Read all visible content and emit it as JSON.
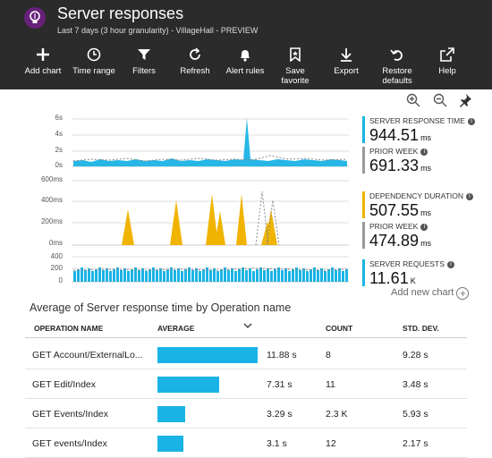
{
  "header": {
    "title": "Server responses",
    "subtitle": "Last 7 days (3 hour granularity) - VillageHall - PREVIEW"
  },
  "toolbar": {
    "items": [
      {
        "label": "Add chart",
        "icon": "plus-icon"
      },
      {
        "label": "Time range",
        "icon": "clock-icon"
      },
      {
        "label": "Filters",
        "icon": "filter-icon"
      },
      {
        "label": "Refresh",
        "icon": "refresh-icon"
      },
      {
        "label": "Alert rules",
        "icon": "bell-icon"
      },
      {
        "label": "Save favorite",
        "line1": "Save",
        "line2": "favorite",
        "icon": "bookmark-icon"
      },
      {
        "label": "Export",
        "icon": "download-icon"
      },
      {
        "label": "Restore defaults",
        "line1": "Restore",
        "line2": "defaults",
        "icon": "undo-icon"
      },
      {
        "label": "Help",
        "icon": "external-link-icon"
      }
    ]
  },
  "charts": {
    "response": {
      "ticks": [
        "6s",
        "4s",
        "2s",
        "0s"
      ],
      "legend": [
        {
          "name": "SERVER RESPONSE TIME",
          "value": "944.51",
          "unit": "ms",
          "color": "#1ab3e6"
        },
        {
          "name": "PRIOR WEEK",
          "value": "691.33",
          "unit": "ms",
          "color": "#999999"
        }
      ]
    },
    "dependency": {
      "ticks": [
        "600ms",
        "400ms",
        "200ms",
        "0ms"
      ],
      "legend": [
        {
          "name": "DEPENDENCY DURATION",
          "value": "507.55",
          "unit": "ms",
          "color": "#f0b400"
        },
        {
          "name": "PRIOR WEEK",
          "value": "474.89",
          "unit": "ms",
          "color": "#999999"
        }
      ]
    },
    "requests": {
      "ticks": [
        "400",
        "200",
        "0"
      ],
      "legend": [
        {
          "name": "SERVER REQUESTS",
          "value": "11.61",
          "unit": "K",
          "color": "#1ab3e6"
        }
      ]
    }
  },
  "add_chart_label": "Add new chart",
  "table": {
    "title": "Average of Server response time by Operation name",
    "headers": {
      "operation": "OPERATION NAME",
      "average": "AVERAGE",
      "count": "COUNT",
      "stddev": "STD. DEV."
    },
    "rows": [
      {
        "operation": "GET Account/ExternalLo...",
        "average": "11.88 s",
        "avg_value": 11.88,
        "count": "8",
        "stddev": "9.28 s"
      },
      {
        "operation": "GET Edit/Index",
        "average": "7.31 s",
        "avg_value": 7.31,
        "count": "11",
        "stddev": "3.48 s"
      },
      {
        "operation": "GET Events/Index",
        "average": "3.29 s",
        "avg_value": 3.29,
        "count": "2.3 K",
        "stddev": "5.93 s"
      },
      {
        "operation": "GET events/Index",
        "average": "3.1 s",
        "avg_value": 3.1,
        "count": "12",
        "stddev": "2.17 s"
      }
    ]
  },
  "colors": {
    "accent": "#1ab3e6",
    "dependency": "#f0b400",
    "header_bg": "#2b2b2b",
    "app_icon": "#68217a"
  }
}
